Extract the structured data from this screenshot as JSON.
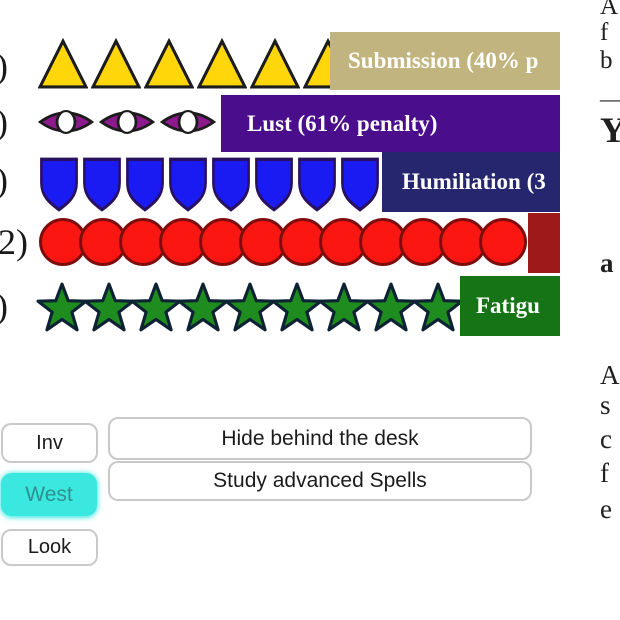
{
  "status_panel": {
    "left_fragments": [
      ")",
      ")",
      ")",
      "2)",
      ")"
    ],
    "rows": [
      {
        "name": "submission",
        "icon": "triangle",
        "icon_count": 6,
        "label": "Submission (40% p",
        "label_bg": "#c2b47e",
        "label_text_color": "#ffffff",
        "icon_fill": "#ffd60a",
        "icon_stroke": "#1c1c1c"
      },
      {
        "name": "lust",
        "icon": "eye",
        "icon_count": 3,
        "label": "Lust (61% penalty)",
        "label_bg": "#4a0d8c",
        "label_text_color": "#ffffff",
        "icon_fill": "#8d1a8d",
        "icon_stroke": "#1c1c1c"
      },
      {
        "name": "humiliation",
        "icon": "shield",
        "icon_count": 8,
        "label": "Humiliation (3",
        "label_bg": "#26266e",
        "label_text_color": "#ffffff",
        "icon_fill": "#1a1af2",
        "icon_stroke": "#2a1060"
      },
      {
        "name": "pain",
        "icon": "circle",
        "icon_count": 12,
        "label": "",
        "label_bg": "#9e1a1a",
        "label_text_color": "#ffffff",
        "icon_fill": "#fb1612",
        "icon_stroke": "#7d0d0d"
      },
      {
        "name": "fatigue",
        "icon": "star",
        "icon_count": 10,
        "label": "Fatigu",
        "label_bg": "#167416",
        "label_text_color": "#ffffff",
        "icon_fill": "#1e8c1e",
        "icon_stroke": "#0d2233"
      }
    ]
  },
  "nav_buttons": [
    {
      "label": "Inv",
      "active": false
    },
    {
      "label": "West",
      "active": true
    },
    {
      "label": "Look",
      "active": false
    }
  ],
  "action_buttons": [
    {
      "label": "Hide behind the desk"
    },
    {
      "label": "Study advanced Spells"
    }
  ],
  "right_text_fragments": [
    "A",
    "f",
    "b",
    "—",
    "Y",
    "a",
    "A",
    "s",
    "c",
    "f",
    "e"
  ],
  "accent_colors": {
    "active_nav_bg": "#3ae8e0",
    "active_nav_text": "#2f9090"
  }
}
